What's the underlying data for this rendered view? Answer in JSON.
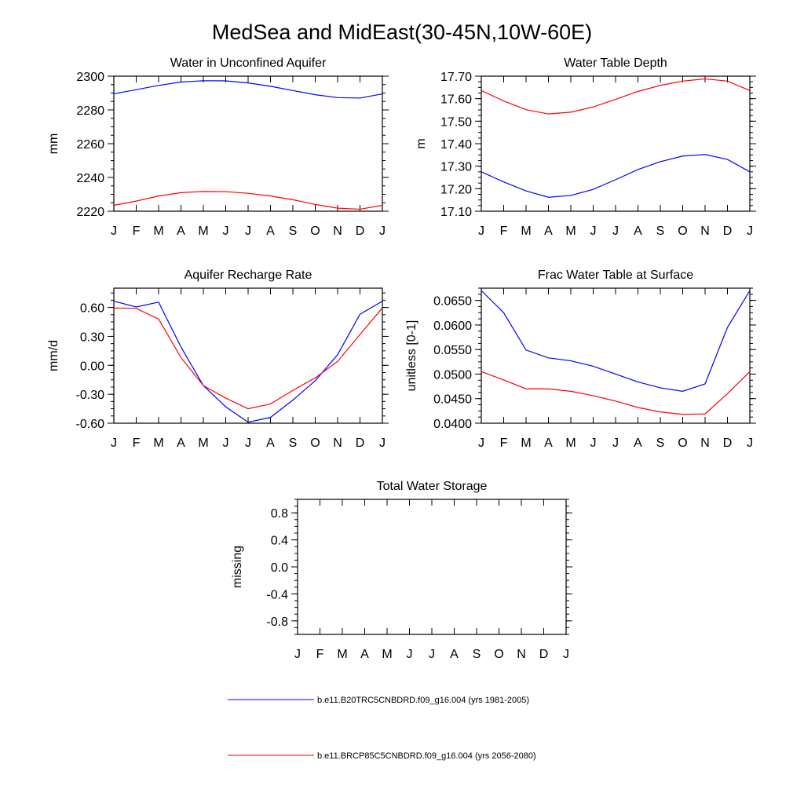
{
  "figure": {
    "title": "MedSea and MidEast(30-45N,10W-60E)"
  },
  "legend": [
    {
      "label": "b.e11.B20TRC5CNBDRD.f09_g16.004 (yrs 1981-2005)",
      "color": "#0000ff"
    },
    {
      "label": "b.e11.BRCP85C5CNBDRD.f09_g16.004 (yrs 2056-2080)",
      "color": "#ff0000"
    }
  ],
  "chart_data": [
    {
      "id": "water-unconfined-aquifer",
      "type": "line",
      "title": "Water in Unconfined Aquifer",
      "ylabel": "mm",
      "xlabel": "",
      "categories": [
        "J",
        "F",
        "M",
        "A",
        "M",
        "J",
        "J",
        "A",
        "S",
        "O",
        "N",
        "D",
        "J"
      ],
      "ylim": [
        2220,
        2300
      ],
      "yticks": [
        2220,
        2240,
        2260,
        2280,
        2300
      ],
      "ytick_labels": [
        "2220",
        "2240",
        "2260",
        "2280",
        "2300"
      ],
      "series": [
        {
          "name": "b.e11.B20TRC5CNBDRD.f09_g16.004 (yrs 1981-2005)",
          "color": "#0000ff",
          "values": [
            2289.5,
            2292,
            2294.5,
            2296.5,
            2297.3,
            2297.2,
            2296,
            2294,
            2291.5,
            2289,
            2287.3,
            2287,
            2289.5
          ]
        },
        {
          "name": "b.e11.BRCP85C5CNBDRD.f09_g16.004 (yrs 2056-2080)",
          "color": "#ff0000",
          "values": [
            2223.5,
            2226,
            2229,
            2231,
            2231.7,
            2231.6,
            2230.6,
            2229,
            2226.8,
            2224,
            2221.8,
            2221.2,
            2223.5
          ]
        }
      ]
    },
    {
      "id": "water-table-depth",
      "type": "line",
      "title": "Water Table Depth",
      "ylabel": "m",
      "xlabel": "",
      "categories": [
        "J",
        "F",
        "M",
        "A",
        "M",
        "J",
        "J",
        "A",
        "S",
        "O",
        "N",
        "D",
        "J"
      ],
      "ylim": [
        17.1,
        17.7
      ],
      "yticks": [
        17.1,
        17.2,
        17.3,
        17.4,
        17.5,
        17.6,
        17.7
      ],
      "ytick_labels": [
        "17.10",
        "17.20",
        "17.30",
        "17.40",
        "17.50",
        "17.60",
        "17.70"
      ],
      "series": [
        {
          "name": "b.e11.B20TRC5CNBDRD.f09_g16.004 (yrs 1981-2005)",
          "color": "#0000ff",
          "values": [
            17.275,
            17.23,
            17.19,
            17.162,
            17.17,
            17.197,
            17.24,
            17.285,
            17.32,
            17.345,
            17.352,
            17.33,
            17.275
          ]
        },
        {
          "name": "b.e11.BRCP85C5CNBDRD.f09_g16.004 (yrs 2056-2080)",
          "color": "#ff0000",
          "values": [
            17.636,
            17.59,
            17.551,
            17.532,
            17.54,
            17.563,
            17.597,
            17.632,
            17.659,
            17.678,
            17.688,
            17.678,
            17.636
          ]
        }
      ]
    },
    {
      "id": "aquifer-recharge-rate",
      "type": "line",
      "title": "Aquifer Recharge Rate",
      "ylabel": "mm/d",
      "xlabel": "",
      "categories": [
        "J",
        "F",
        "M",
        "A",
        "M",
        "J",
        "J",
        "A",
        "S",
        "O",
        "N",
        "D",
        "J"
      ],
      "ylim": [
        -0.6,
        0.8
      ],
      "yticks": [
        -0.6,
        -0.3,
        0.0,
        0.3,
        0.6
      ],
      "ytick_labels": [
        "-0.60",
        "-0.30",
        "0.00",
        "0.30",
        "0.60"
      ],
      "series": [
        {
          "name": "b.e11.B20TRC5CNBDRD.f09_g16.004 (yrs 1981-2005)",
          "color": "#0000ff",
          "values": [
            0.665,
            0.605,
            0.655,
            0.19,
            -0.21,
            -0.43,
            -0.59,
            -0.54,
            -0.36,
            -0.16,
            0.11,
            0.53,
            0.665
          ]
        },
        {
          "name": "b.e11.BRCP85C5CNBDRD.f09_g16.004 (yrs 2056-2080)",
          "color": "#ff0000",
          "values": [
            0.595,
            0.59,
            0.48,
            0.08,
            -0.21,
            -0.34,
            -0.45,
            -0.4,
            -0.26,
            -0.13,
            0.04,
            0.32,
            0.595
          ]
        }
      ]
    },
    {
      "id": "frac-water-table-surface",
      "type": "line",
      "title": "Frac Water Table at Surface",
      "ylabel": "unitless [0-1]",
      "xlabel": "",
      "categories": [
        "J",
        "F",
        "M",
        "A",
        "M",
        "J",
        "J",
        "A",
        "S",
        "O",
        "N",
        "D",
        "J"
      ],
      "ylim": [
        0.04,
        0.0675
      ],
      "yticks": [
        0.04,
        0.045,
        0.05,
        0.055,
        0.06,
        0.065
      ],
      "ytick_labels": [
        "0.0400",
        "0.0450",
        "0.0500",
        "0.0550",
        "0.0600",
        "0.0650"
      ],
      "series": [
        {
          "name": "b.e11.B20TRC5CNBDRD.f09_g16.004 (yrs 1981-2005)",
          "color": "#0000ff",
          "values": [
            0.067,
            0.0625,
            0.0549,
            0.0533,
            0.0527,
            0.0516,
            0.05,
            0.0484,
            0.0472,
            0.0465,
            0.048,
            0.0595,
            0.067
          ]
        },
        {
          "name": "b.e11.BRCP85C5CNBDRD.f09_g16.004 (yrs 2056-2080)",
          "color": "#ff0000",
          "values": [
            0.0505,
            0.0488,
            0.047,
            0.047,
            0.0465,
            0.0456,
            0.0445,
            0.0432,
            0.0423,
            0.0418,
            0.0419,
            0.046,
            0.0505
          ]
        }
      ]
    },
    {
      "id": "total-water-storage",
      "type": "line",
      "title": "Total Water Storage",
      "ylabel": "missing",
      "xlabel": "",
      "categories": [
        "J",
        "F",
        "M",
        "A",
        "M",
        "J",
        "J",
        "A",
        "S",
        "O",
        "N",
        "D",
        "J"
      ],
      "ylim": [
        -1.0,
        1.0
      ],
      "yticks": [
        -0.8,
        -0.4,
        0.0,
        0.4,
        0.8
      ],
      "ytick_labels": [
        "-0.8",
        "-0.4",
        "0.0",
        "0.4",
        "0.8"
      ],
      "series": []
    }
  ]
}
